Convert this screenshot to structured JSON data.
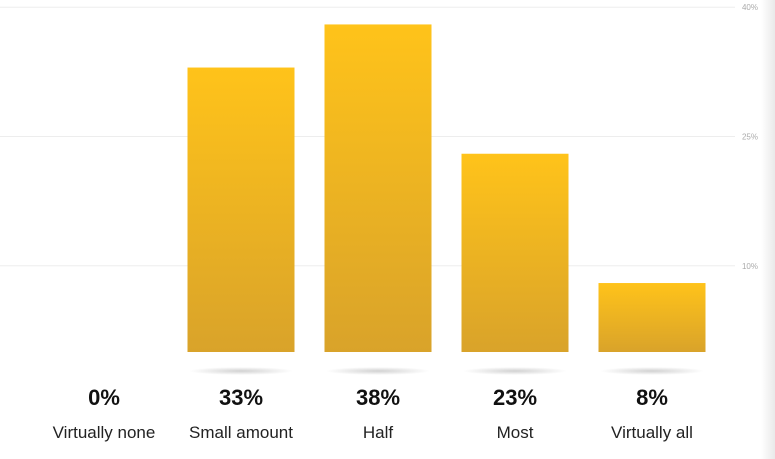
{
  "chart_data": {
    "type": "bar",
    "categories": [
      "Virtually none",
      "Small amount",
      "Half",
      "Most",
      "Virtually all"
    ],
    "values": [
      0,
      33,
      38,
      23,
      8
    ],
    "value_labels": [
      "0%",
      "33%",
      "38%",
      "23%",
      "8%"
    ],
    "y_ticks": [
      {
        "value": 10,
        "label": "10%"
      },
      {
        "value": 25,
        "label": "25%"
      },
      {
        "value": 40,
        "label": "40%"
      }
    ],
    "ylim": [
      0,
      40
    ],
    "grid": true,
    "colors": {
      "bar_top": "#FFC31A",
      "bar_bottom": "#D9A32A",
      "grid": "#EDEDED"
    }
  }
}
